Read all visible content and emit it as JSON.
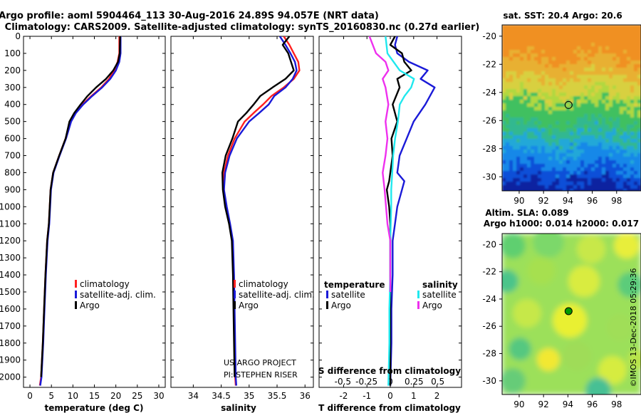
{
  "title_line1": "Argo profile: aoml 5904464_113 30-Aug-2016 24.89S 94.057E (NRT data)",
  "title_line2": "Climatology: CARS2009. Satellite-adjusted climatology: synTS_20160830.nc (0.27d earlier)",
  "colors": {
    "climatology": "#ff2020",
    "satellite": "#1a1ad8",
    "argo": "#000000",
    "sal_satellite": "#20e8ee",
    "sal_argo": "#ee30ee"
  },
  "depth_ticks": [
    0,
    100,
    200,
    300,
    400,
    500,
    600,
    700,
    800,
    900,
    1000,
    1100,
    1200,
    1300,
    1400,
    1500,
    1600,
    1700,
    1800,
    1900,
    2000
  ],
  "depth_range": [
    0,
    2060
  ],
  "chart_data": [
    {
      "type": "line",
      "name": "temperature",
      "xlabel": "temperature (deg C)",
      "xlim": [
        -1.5,
        31.5
      ],
      "xticks": [
        0,
        5,
        10,
        15,
        20,
        25,
        30
      ],
      "legend": [
        "climatology",
        "satellite-adj. clim.",
        "Argo"
      ],
      "series": [
        {
          "name": "climatology",
          "color": "climatology",
          "x": [
            20.8,
            20.8,
            20.4,
            19.6,
            18.4,
            16.6,
            14.3,
            12.2,
            10.5,
            9.5,
            8.3,
            6.8,
            5.4,
            4.8,
            4.6,
            4.4,
            4.0,
            3.6,
            3.3,
            3.0,
            2.8,
            2.6,
            2.3
          ],
          "y": [
            0,
            100,
            150,
            200,
            250,
            300,
            350,
            400,
            450,
            500,
            600,
            700,
            800,
            900,
            1000,
            1100,
            1200,
            1400,
            1600,
            1800,
            1900,
            2000,
            2050
          ]
        },
        {
          "name": "satellite-adj. clim.",
          "color": "satellite",
          "x": [
            21.1,
            21.1,
            20.8,
            20.0,
            18.7,
            16.8,
            14.5,
            12.4,
            10.7,
            9.6,
            8.4,
            6.9,
            5.5,
            4.9,
            4.7,
            4.5,
            4.1,
            3.7,
            3.4,
            3.1,
            2.9,
            2.7,
            2.4
          ],
          "y": [
            0,
            100,
            150,
            200,
            250,
            300,
            350,
            400,
            450,
            500,
            600,
            700,
            800,
            900,
            1000,
            1100,
            1200,
            1400,
            1600,
            1800,
            1900,
            2000,
            2050
          ]
        },
        {
          "name": "Argo",
          "color": "argo",
          "x": [
            21.0,
            20.9,
            20.5,
            19.4,
            17.7,
            15.4,
            13.4,
            11.8,
            10.3,
            9.2,
            8.3,
            6.8,
            5.4,
            4.8,
            4.6,
            4.4,
            4.0,
            3.6,
            3.3,
            3.0,
            2.8,
            2.6
          ],
          "y": [
            0,
            100,
            150,
            200,
            250,
            300,
            350,
            400,
            450,
            500,
            600,
            700,
            800,
            900,
            1000,
            1100,
            1200,
            1400,
            1600,
            1800,
            1900,
            2000
          ]
        }
      ]
    },
    {
      "type": "line",
      "name": "salinity",
      "xlabel": "salinity",
      "xlim": [
        33.6,
        36.15
      ],
      "xticks": [
        34,
        34.5,
        35,
        35.5,
        36
      ],
      "xticklabels": [
        "34",
        "34.5",
        "35",
        "35.5",
        "36"
      ],
      "legend": [
        "climatology",
        "satellite-adj. clim.",
        "Argo"
      ],
      "credits": [
        "US ARGO PROJECT",
        "PI: STEPHEN RISER"
      ],
      "series": [
        {
          "name": "climatology",
          "color": "climatology",
          "x": [
            35.62,
            35.72,
            35.8,
            35.88,
            35.9,
            35.8,
            35.62,
            35.4,
            35.25,
            35.08,
            34.92,
            34.74,
            34.62,
            34.55,
            34.55,
            34.58,
            34.65,
            34.7,
            34.72,
            34.73,
            34.74,
            34.75,
            34.76
          ],
          "y": [
            0,
            50,
            100,
            150,
            200,
            250,
            300,
            350,
            400,
            450,
            500,
            600,
            700,
            800,
            900,
            1000,
            1100,
            1200,
            1400,
            1600,
            1800,
            2000,
            2050
          ]
        },
        {
          "name": "satellite-adj. clim.",
          "color": "satellite",
          "x": [
            35.55,
            35.65,
            35.74,
            35.82,
            35.85,
            35.78,
            35.65,
            35.45,
            35.35,
            35.18,
            35.0,
            34.78,
            34.65,
            34.57,
            34.55,
            34.6,
            34.66,
            34.71,
            34.73,
            34.74,
            34.75,
            34.76,
            34.77
          ],
          "y": [
            0,
            50,
            100,
            150,
            200,
            250,
            300,
            350,
            400,
            450,
            500,
            600,
            700,
            800,
            900,
            1000,
            1100,
            1200,
            1400,
            1600,
            1800,
            2000,
            2050
          ]
        },
        {
          "name": "Argo",
          "color": "argo",
          "x": [
            35.72,
            35.6,
            35.7,
            35.75,
            35.8,
            35.65,
            35.42,
            35.2,
            35.08,
            34.95,
            34.8,
            34.7,
            34.58,
            34.52,
            34.53,
            34.57,
            34.64,
            34.69,
            34.71,
            34.72,
            34.73,
            34.74
          ],
          "y": [
            0,
            50,
            100,
            150,
            200,
            250,
            300,
            350,
            400,
            450,
            500,
            600,
            700,
            800,
            900,
            1000,
            1100,
            1200,
            1400,
            1600,
            1800,
            2000
          ]
        }
      ]
    },
    {
      "type": "line",
      "name": "differences",
      "xlabel": "T difference from climatology",
      "xlim": [
        -3.05,
        3.05
      ],
      "xticks": [
        -2,
        -1,
        0,
        1,
        2
      ],
      "top_axis_label": "S difference from climatology",
      "top_xticks": [
        -0.5,
        -0.25,
        0,
        0.25,
        0.5
      ],
      "top_xticklabels": [
        "-0.5",
        "-0.25",
        "0",
        "0.25",
        "0.5"
      ],
      "legend_temperature": {
        "title": "temperature",
        "items": [
          "satellite",
          "Argo"
        ]
      },
      "legend_salinity": {
        "title": "salinity",
        "items": [
          "satellite",
          "Argo"
        ]
      },
      "series": [
        {
          "name": "temperature satellite",
          "color": "satellite",
          "x": [
            0.3,
            0.2,
            0.3,
            0.8,
            1.6,
            1.3,
            1.9,
            1.5,
            1.0,
            0.7,
            0.4,
            0.3,
            0.6,
            0.5,
            0.3,
            0.2,
            0.1,
            0.1,
            0.05,
            0.05,
            0.0
          ],
          "y": [
            0,
            50,
            100,
            150,
            200,
            250,
            300,
            400,
            500,
            600,
            700,
            800,
            850,
            900,
            1000,
            1100,
            1200,
            1400,
            1600,
            1800,
            2050
          ]
        },
        {
          "name": "temperature Argo",
          "color": "argo",
          "x": [
            0.2,
            0.0,
            0.5,
            0.6,
            0.9,
            0.3,
            0.4,
            0.1,
            0.3,
            0.05,
            0.1,
            0.0,
            -0.05,
            -0.15,
            -0.05,
            0.0,
            0.0,
            0.0,
            0.0
          ],
          "y": [
            0,
            50,
            100,
            150,
            200,
            250,
            300,
            400,
            500,
            600,
            700,
            800,
            850,
            900,
            1000,
            1100,
            1200,
            1600,
            2050
          ]
        },
        {
          "name": "salinity satellite",
          "color": "sal_satellite",
          "x": [
            -0.05,
            -0.03,
            0.1,
            0.25,
            0.22,
            0.15,
            0.1,
            0.08,
            0.05,
            0.03,
            0.02,
            0.01,
            0.01,
            0.0,
            0.0,
            -0.01,
            -0.01,
            -0.02
          ],
          "y": [
            0,
            100,
            200,
            250,
            300,
            350,
            400,
            500,
            600,
            700,
            800,
            900,
            1000,
            1200,
            1400,
            1600,
            1800,
            2050
          ]
        },
        {
          "name": "salinity Argo",
          "color": "sal_argo",
          "x": [
            -0.22,
            -0.15,
            -0.05,
            -0.02,
            -0.08,
            -0.05,
            -0.02,
            -0.05,
            -0.03,
            -0.05,
            -0.08,
            -0.06,
            -0.03,
            0.0,
            0.0
          ],
          "y": [
            0,
            100,
            150,
            200,
            250,
            300,
            400,
            500,
            600,
            700,
            800,
            900,
            1100,
            1200,
            1500
          ]
        }
      ]
    }
  ],
  "maps": {
    "sst": {
      "title": "sat. SST: 20.4 Argo: 20.6",
      "xticks": [
        "90",
        "92",
        "94",
        "96",
        "98"
      ],
      "yticks": [
        "-20",
        "-22",
        "-24",
        "-26",
        "-28",
        "-30"
      ]
    },
    "sla": {
      "title1": "Altim. SLA: 0.089",
      "title2": "Argo h1000: 0.014 h2000: 0.017",
      "xticks": [
        "90",
        "92",
        "94",
        "96",
        "98"
      ],
      "yticks": [
        "-20",
        "-22",
        "-24",
        "-26",
        "-28",
        "-30"
      ]
    },
    "float_lon": 94.057,
    "float_lat": -24.89
  },
  "stamp": "©IMOS 13-Dec-2018 05:29:36"
}
